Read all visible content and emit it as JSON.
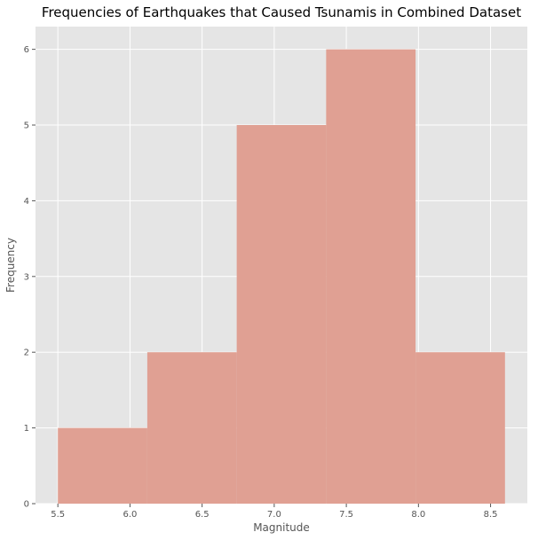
{
  "chart_data": {
    "type": "bar",
    "title": "Frequencies of Earthquakes that Caused Tsunamis in Combined Dataset",
    "xlabel": "Magnitude",
    "ylabel": "Frequency",
    "bins": [
      {
        "start": 5.5,
        "end": 6.12,
        "count": 1
      },
      {
        "start": 6.12,
        "end": 6.74,
        "count": 2
      },
      {
        "start": 6.74,
        "end": 7.36,
        "count": 5
      },
      {
        "start": 7.36,
        "end": 7.98,
        "count": 6
      },
      {
        "start": 7.98,
        "end": 8.6,
        "count": 2
      }
    ],
    "xlim": [
      5.345,
      8.755
    ],
    "ylim": [
      0,
      6.3
    ],
    "xticks": [
      "5.5",
      "6.0",
      "6.5",
      "7.0",
      "7.5",
      "8.0",
      "8.5"
    ],
    "yticks": [
      "0",
      "1",
      "2",
      "3",
      "4",
      "5",
      "6"
    ],
    "grid": true,
    "colors": {
      "bar": "#e0a093",
      "plot_background": "#e5e5e5",
      "grid": "#ffffff"
    }
  }
}
